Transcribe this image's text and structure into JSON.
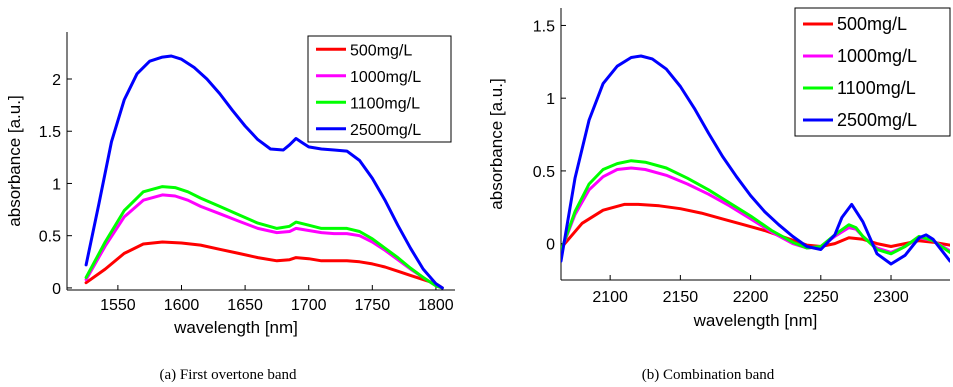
{
  "chart_data": [
    {
      "type": "line",
      "caption": "(a) First overtone band",
      "xlabel": "wavelength [nm]",
      "ylabel": "absorbance [a.u.]",
      "xlim": [
        1510,
        1815
      ],
      "ylim": [
        -0.02,
        2.45
      ],
      "xticks": [
        1550,
        1600,
        1650,
        1700,
        1750,
        1800
      ],
      "yticks": [
        0,
        0.5,
        1,
        1.5,
        2
      ],
      "ytick_labels": [
        "0",
        "0.5",
        "1",
        "1.5",
        "2"
      ],
      "legend_position": "top-right",
      "grid": false,
      "series": [
        {
          "name": "500mg/L",
          "color": "#ff0000",
          "x": [
            1525,
            1540,
            1555,
            1570,
            1585,
            1600,
            1615,
            1630,
            1645,
            1660,
            1675,
            1685,
            1690,
            1700,
            1710,
            1720,
            1730,
            1740,
            1750,
            1760,
            1770,
            1780,
            1790,
            1800,
            1805
          ],
          "y": [
            0.05,
            0.18,
            0.33,
            0.42,
            0.44,
            0.43,
            0.41,
            0.37,
            0.33,
            0.29,
            0.26,
            0.27,
            0.29,
            0.28,
            0.26,
            0.26,
            0.26,
            0.25,
            0.23,
            0.2,
            0.16,
            0.12,
            0.08,
            0.04,
            0.0
          ]
        },
        {
          "name": "1000mg/L",
          "color": "#ff00ff",
          "x": [
            1525,
            1540,
            1555,
            1570,
            1585,
            1595,
            1605,
            1615,
            1630,
            1645,
            1660,
            1675,
            1685,
            1690,
            1700,
            1710,
            1720,
            1730,
            1740,
            1750,
            1760,
            1770,
            1780,
            1790,
            1800,
            1805
          ],
          "y": [
            0.08,
            0.4,
            0.68,
            0.84,
            0.89,
            0.88,
            0.84,
            0.78,
            0.71,
            0.64,
            0.57,
            0.53,
            0.54,
            0.57,
            0.55,
            0.53,
            0.52,
            0.52,
            0.5,
            0.44,
            0.36,
            0.27,
            0.18,
            0.1,
            0.02,
            0.0
          ]
        },
        {
          "name": "1100mg/L",
          "color": "#00ff00",
          "x": [
            1525,
            1540,
            1555,
            1570,
            1585,
            1595,
            1605,
            1615,
            1630,
            1645,
            1660,
            1675,
            1685,
            1690,
            1700,
            1710,
            1720,
            1730,
            1740,
            1750,
            1760,
            1770,
            1780,
            1790,
            1800,
            1805
          ],
          "y": [
            0.1,
            0.44,
            0.74,
            0.92,
            0.97,
            0.96,
            0.92,
            0.86,
            0.78,
            0.7,
            0.62,
            0.57,
            0.59,
            0.63,
            0.6,
            0.57,
            0.57,
            0.57,
            0.54,
            0.47,
            0.38,
            0.29,
            0.19,
            0.1,
            0.02,
            0.0
          ]
        },
        {
          "name": "2500mg/L",
          "color": "#0000ff",
          "x": [
            1525,
            1535,
            1545,
            1555,
            1565,
            1575,
            1585,
            1592,
            1600,
            1610,
            1620,
            1630,
            1640,
            1650,
            1660,
            1670,
            1680,
            1685,
            1690,
            1695,
            1700,
            1710,
            1720,
            1730,
            1740,
            1750,
            1760,
            1770,
            1780,
            1790,
            1800,
            1805
          ],
          "y": [
            0.22,
            0.8,
            1.4,
            1.8,
            2.05,
            2.17,
            2.21,
            2.22,
            2.19,
            2.11,
            2.0,
            1.86,
            1.7,
            1.55,
            1.42,
            1.33,
            1.32,
            1.37,
            1.43,
            1.39,
            1.35,
            1.33,
            1.32,
            1.31,
            1.22,
            1.05,
            0.84,
            0.6,
            0.38,
            0.18,
            0.04,
            0.0
          ]
        }
      ]
    },
    {
      "type": "line",
      "caption": "(b) Combination band",
      "xlabel": "wavelength [nm]",
      "ylabel": "absorbance [a.u.]",
      "xlim": [
        2065,
        2342
      ],
      "ylim": [
        -0.25,
        1.62
      ],
      "xticks": [
        2100,
        2150,
        2200,
        2250,
        2300
      ],
      "yticks": [
        0,
        0.5,
        1,
        1.5
      ],
      "ytick_labels": [
        "0",
        "0.5",
        "1",
        "1.5"
      ],
      "legend_position": "top-right",
      "grid": false,
      "series": [
        {
          "name": "500mg/L",
          "color": "#ff0000",
          "x": [
            2065,
            2080,
            2095,
            2110,
            2120,
            2135,
            2150,
            2165,
            2180,
            2195,
            2210,
            2225,
            2240,
            2250,
            2260,
            2270,
            2280,
            2290,
            2300,
            2310,
            2320,
            2330,
            2342
          ],
          "y": [
            -0.03,
            0.14,
            0.23,
            0.27,
            0.27,
            0.26,
            0.24,
            0.21,
            0.17,
            0.13,
            0.09,
            0.04,
            -0.01,
            -0.02,
            0.0,
            0.04,
            0.03,
            0.0,
            -0.02,
            0.0,
            0.02,
            0.01,
            -0.01
          ]
        },
        {
          "name": "1000mg/L",
          "color": "#ff00ff",
          "x": [
            2065,
            2075,
            2085,
            2095,
            2105,
            2115,
            2125,
            2140,
            2155,
            2170,
            2185,
            2200,
            2215,
            2230,
            2240,
            2250,
            2260,
            2270,
            2275,
            2280,
            2290,
            2300,
            2310,
            2320,
            2330,
            2342
          ],
          "y": [
            -0.05,
            0.2,
            0.37,
            0.46,
            0.51,
            0.52,
            0.51,
            0.47,
            0.41,
            0.34,
            0.26,
            0.17,
            0.08,
            0.0,
            -0.03,
            -0.02,
            0.05,
            0.11,
            0.1,
            0.05,
            -0.03,
            -0.06,
            -0.02,
            0.04,
            0.02,
            -0.05
          ]
        },
        {
          "name": "1100mg/L",
          "color": "#00ff00",
          "x": [
            2065,
            2075,
            2085,
            2095,
            2105,
            2115,
            2125,
            2140,
            2155,
            2170,
            2185,
            2200,
            2215,
            2230,
            2240,
            2250,
            2260,
            2270,
            2275,
            2280,
            2290,
            2300,
            2310,
            2320,
            2330,
            2342
          ],
          "y": [
            -0.05,
            0.22,
            0.41,
            0.51,
            0.55,
            0.57,
            0.56,
            0.52,
            0.45,
            0.37,
            0.28,
            0.19,
            0.09,
            0.01,
            -0.03,
            -0.02,
            0.06,
            0.13,
            0.11,
            0.05,
            -0.04,
            -0.07,
            -0.02,
            0.05,
            0.02,
            -0.06
          ]
        },
        {
          "name": "2500mg/L",
          "color": "#0000ff",
          "x": [
            2065,
            2075,
            2085,
            2095,
            2105,
            2115,
            2122,
            2130,
            2140,
            2150,
            2160,
            2170,
            2180,
            2190,
            2200,
            2210,
            2220,
            2230,
            2240,
            2250,
            2260,
            2265,
            2272,
            2280,
            2290,
            2300,
            2310,
            2320,
            2325,
            2330,
            2342
          ],
          "y": [
            -0.12,
            0.45,
            0.85,
            1.1,
            1.22,
            1.28,
            1.29,
            1.27,
            1.2,
            1.08,
            0.93,
            0.76,
            0.6,
            0.46,
            0.33,
            0.22,
            0.13,
            0.05,
            -0.02,
            -0.04,
            0.06,
            0.18,
            0.27,
            0.15,
            -0.07,
            -0.14,
            -0.08,
            0.04,
            0.06,
            0.03,
            -0.12
          ]
        }
      ]
    }
  ]
}
